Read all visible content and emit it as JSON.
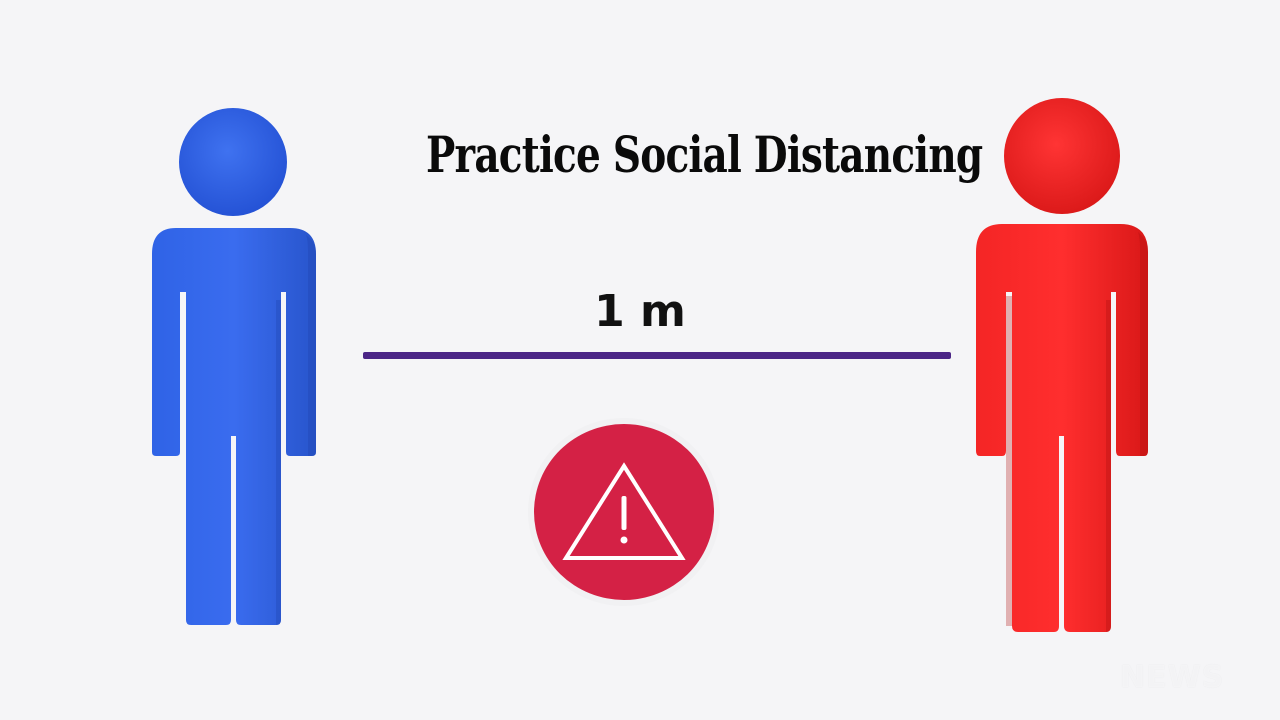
{
  "headline": "Practice Social Distancing",
  "distance": "1 m",
  "colors": {
    "left_figure": "#2f63e6",
    "right_figure": "#f21f1f",
    "distance_line": "#4b2586",
    "warning_fill": "#d42145",
    "background": "#f5f5f7"
  },
  "icons": {
    "left_figure": "person-icon",
    "right_figure": "person-icon",
    "warning": "warning-triangle-icon"
  },
  "watermark": "NEWS"
}
